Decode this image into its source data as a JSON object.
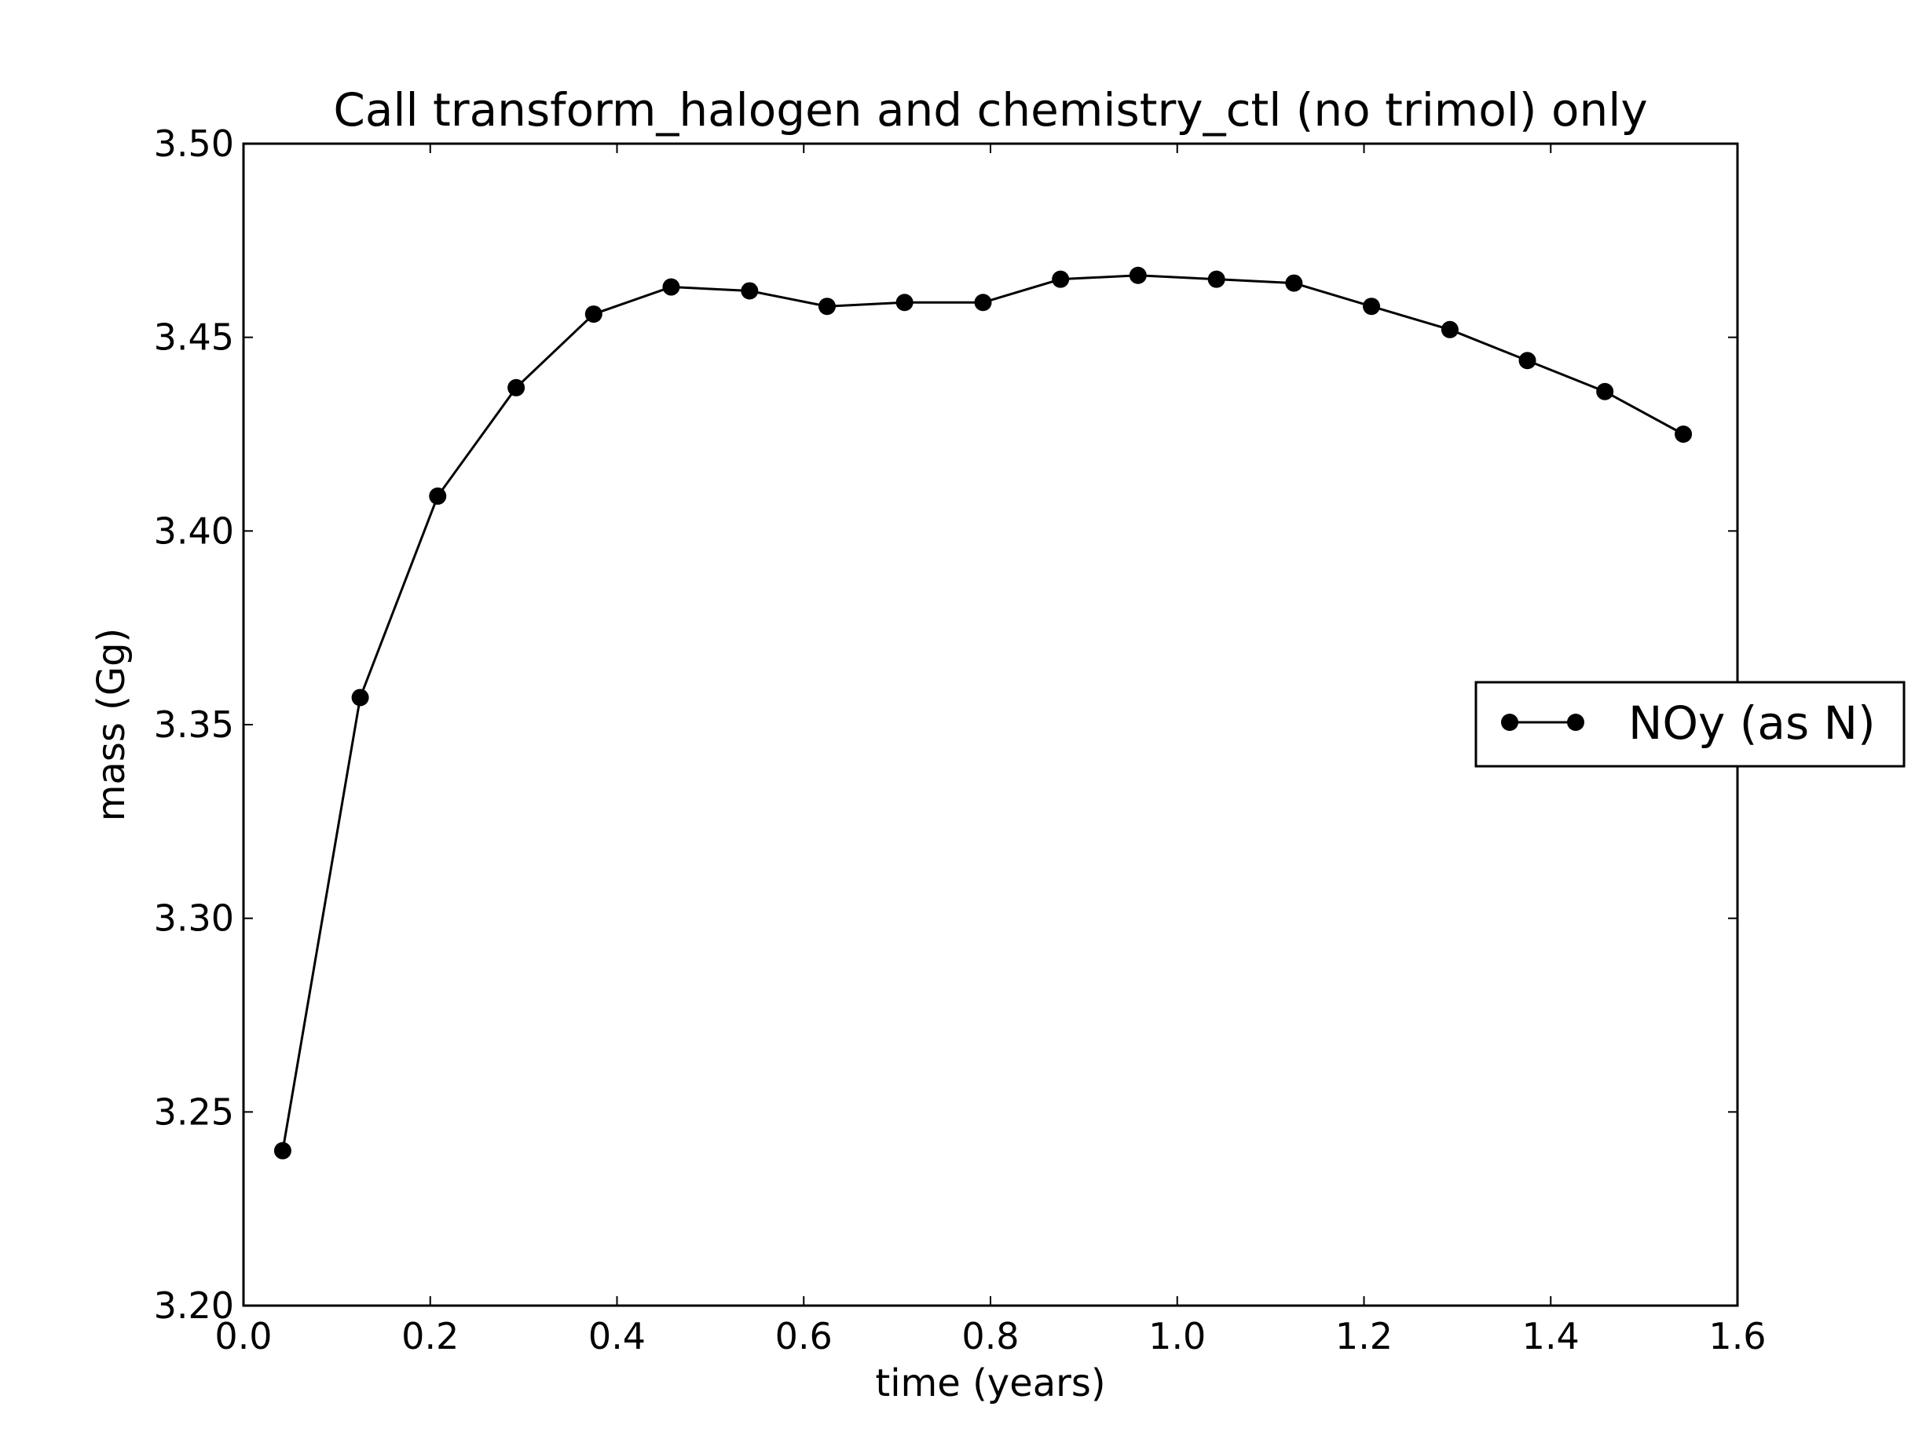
{
  "chart_data": {
    "type": "line",
    "title": "Call transform_halogen and chemistry_ctl (no trimol) only",
    "xlabel": "time (years)",
    "ylabel": "mass (Gg)",
    "xlim": [
      0.0,
      1.6
    ],
    "ylim": [
      3.2,
      3.5
    ],
    "xticks": [
      "0.0",
      "0.2",
      "0.4",
      "0.6",
      "0.8",
      "1.0",
      "1.2",
      "1.4",
      "1.6"
    ],
    "yticks": [
      "3.20",
      "3.25",
      "3.30",
      "3.35",
      "3.40",
      "3.45",
      "3.50"
    ],
    "grid": false,
    "legend_position": "right",
    "series": [
      {
        "name": "NOy (as N)",
        "color": "#000000",
        "marker": "circle",
        "x": [
          0.042,
          0.125,
          0.208,
          0.292,
          0.375,
          0.458,
          0.542,
          0.625,
          0.708,
          0.792,
          0.875,
          0.958,
          1.042,
          1.125,
          1.208,
          1.292,
          1.375,
          1.458,
          1.542
        ],
        "y": [
          3.24,
          3.357,
          3.409,
          3.437,
          3.456,
          3.463,
          3.462,
          3.458,
          3.459,
          3.459,
          3.465,
          3.466,
          3.465,
          3.464,
          3.458,
          3.452,
          3.444,
          3.436,
          3.425
        ]
      }
    ]
  }
}
